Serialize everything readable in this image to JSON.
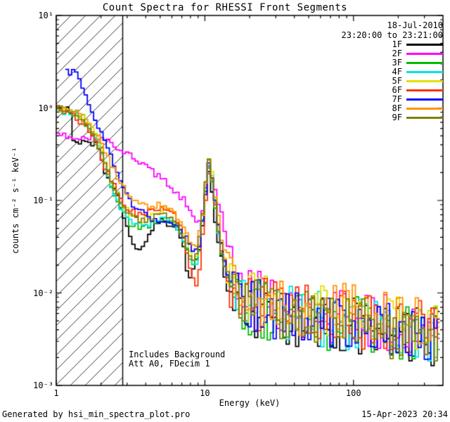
{
  "window": {
    "title": "Count Spectra for RHESSI Front Segments"
  },
  "header": {
    "date": "18-Jul-2010",
    "time_range": "23:20:00 to 23:21:00"
  },
  "axes": {
    "xlabel": "Energy (keV)",
    "ylabel": "counts cm⁻² s⁻¹ keV⁻¹",
    "x_ticks": [
      {
        "value": 1,
        "label": "1"
      },
      {
        "value": 10,
        "label": "10"
      },
      {
        "value": 100,
        "label": "100"
      }
    ],
    "y_ticks": [
      {
        "value": 0.001,
        "label": "10⁻³"
      },
      {
        "value": 0.01,
        "label": "10⁻²"
      },
      {
        "value": 0.1,
        "label": "10⁻¹"
      },
      {
        "value": 1,
        "label": "10⁰"
      },
      {
        "value": 10,
        "label": "10¹"
      }
    ]
  },
  "annotations": {
    "background": "Includes Background",
    "attenuator": "Att A0, FDecim 1"
  },
  "footer": {
    "generated_by": "Generated by hsi_min_spectra_plot.pro",
    "timestamp": "15-Apr-2023 20:34"
  },
  "chart_data": {
    "type": "line",
    "title": "Count Spectra for RHESSI Front Segments",
    "xlabel": "Energy (keV)",
    "ylabel": "counts cm⁻² s⁻¹ keV⁻¹",
    "x_scale": "log",
    "y_scale": "log",
    "xlim": [
      1,
      400
    ],
    "ylim": [
      0.001,
      10
    ],
    "grid": false,
    "legend_position": "top-right",
    "hatched_region_keV": [
      1,
      2.8
    ],
    "bin_ratio": 1.05,
    "noise": {
      "low_dex": 0.035,
      "high_dex": 0.32,
      "transition_keV": [
        12,
        20
      ]
    },
    "series": [
      {
        "name": "1F",
        "color": "#000000",
        "points": [
          [
            1.0,
            1.0
          ],
          [
            1.25,
            0.95
          ],
          [
            1.3,
            0.45
          ],
          [
            1.6,
            0.42
          ],
          [
            1.9,
            0.4
          ],
          [
            2.1,
            0.22
          ],
          [
            2.4,
            0.15
          ],
          [
            2.7,
            0.09
          ],
          [
            3.0,
            0.05
          ],
          [
            3.4,
            0.032
          ],
          [
            3.9,
            0.03
          ],
          [
            4.3,
            0.045
          ],
          [
            5.0,
            0.06
          ],
          [
            5.8,
            0.055
          ],
          [
            6.5,
            0.05
          ],
          [
            7.2,
            0.035
          ],
          [
            7.8,
            0.013
          ],
          [
            8.6,
            0.02
          ],
          [
            9.3,
            0.03
          ],
          [
            10.0,
            0.1
          ],
          [
            10.6,
            0.2
          ],
          [
            11.2,
            0.13
          ],
          [
            12.0,
            0.045
          ],
          [
            13.5,
            0.015
          ],
          [
            16,
            0.008
          ],
          [
            20,
            0.0065
          ],
          [
            30,
            0.006
          ],
          [
            50,
            0.005
          ],
          [
            80,
            0.0045
          ],
          [
            120,
            0.004
          ],
          [
            200,
            0.0036
          ],
          [
            380,
            0.003
          ]
        ]
      },
      {
        "name": "2F",
        "color": "#ff00ff",
        "points": [
          [
            1.0,
            0.5
          ],
          [
            1.5,
            0.48
          ],
          [
            2.0,
            0.46
          ],
          [
            2.3,
            0.42
          ],
          [
            2.7,
            0.36
          ],
          [
            3.2,
            0.3
          ],
          [
            3.8,
            0.25
          ],
          [
            4.5,
            0.2
          ],
          [
            5.5,
            0.155
          ],
          [
            6.5,
            0.12
          ],
          [
            7.5,
            0.095
          ],
          [
            8.3,
            0.065
          ],
          [
            9.0,
            0.055
          ],
          [
            9.8,
            0.09
          ],
          [
            10.6,
            0.24
          ],
          [
            11.3,
            0.16
          ],
          [
            12.5,
            0.09
          ],
          [
            14,
            0.035
          ],
          [
            16,
            0.015
          ],
          [
            18,
            0.01
          ],
          [
            22,
            0.0085
          ],
          [
            30,
            0.0075
          ],
          [
            50,
            0.0065
          ],
          [
            80,
            0.0058
          ],
          [
            120,
            0.0052
          ],
          [
            200,
            0.0047
          ],
          [
            380,
            0.004
          ]
        ]
      },
      {
        "name": "3F",
        "color": "#00bb00",
        "points": [
          [
            1.0,
            1.05
          ],
          [
            1.3,
            0.95
          ],
          [
            1.5,
            0.8
          ],
          [
            1.8,
            0.55
          ],
          [
            2.1,
            0.3
          ],
          [
            2.4,
            0.13
          ],
          [
            2.8,
            0.075
          ],
          [
            3.2,
            0.055
          ],
          [
            3.8,
            0.05
          ],
          [
            4.5,
            0.055
          ],
          [
            5.2,
            0.065
          ],
          [
            6.0,
            0.06
          ],
          [
            6.8,
            0.048
          ],
          [
            7.6,
            0.03
          ],
          [
            8.4,
            0.02
          ],
          [
            9.2,
            0.028
          ],
          [
            10.0,
            0.11
          ],
          [
            10.6,
            0.22
          ],
          [
            11.3,
            0.14
          ],
          [
            12.2,
            0.05
          ],
          [
            14,
            0.015
          ],
          [
            17,
            0.008
          ],
          [
            22,
            0.0065
          ],
          [
            35,
            0.0058
          ],
          [
            60,
            0.005
          ],
          [
            100,
            0.0045
          ],
          [
            180,
            0.004
          ],
          [
            380,
            0.0033
          ]
        ]
      },
      {
        "name": "4F",
        "color": "#00e5e5",
        "points": [
          [
            1.0,
            0.95
          ],
          [
            1.4,
            0.85
          ],
          [
            1.7,
            0.6
          ],
          [
            2.0,
            0.35
          ],
          [
            2.3,
            0.16
          ],
          [
            2.7,
            0.085
          ],
          [
            3.2,
            0.06
          ],
          [
            3.8,
            0.052
          ],
          [
            4.6,
            0.06
          ],
          [
            5.4,
            0.068
          ],
          [
            6.2,
            0.058
          ],
          [
            7.0,
            0.042
          ],
          [
            7.8,
            0.025
          ],
          [
            8.6,
            0.018
          ],
          [
            9.4,
            0.035
          ],
          [
            10.1,
            0.13
          ],
          [
            10.7,
            0.25
          ],
          [
            11.4,
            0.15
          ],
          [
            12.3,
            0.05
          ],
          [
            14,
            0.014
          ],
          [
            17,
            0.0085
          ],
          [
            22,
            0.007
          ],
          [
            35,
            0.006
          ],
          [
            60,
            0.0052
          ],
          [
            100,
            0.0047
          ],
          [
            180,
            0.0042
          ],
          [
            380,
            0.0035
          ]
        ]
      },
      {
        "name": "5F",
        "color": "#e0e000",
        "points": [
          [
            1.0,
            1.0
          ],
          [
            1.4,
            0.9
          ],
          [
            1.7,
            0.65
          ],
          [
            2.0,
            0.4
          ],
          [
            2.3,
            0.18
          ],
          [
            2.7,
            0.1
          ],
          [
            3.2,
            0.07
          ],
          [
            3.8,
            0.06
          ],
          [
            4.6,
            0.07
          ],
          [
            5.4,
            0.08
          ],
          [
            6.2,
            0.07
          ],
          [
            7.0,
            0.05
          ],
          [
            7.8,
            0.03
          ],
          [
            8.6,
            0.022
          ],
          [
            9.4,
            0.04
          ],
          [
            10.1,
            0.14
          ],
          [
            10.7,
            0.3
          ],
          [
            11.4,
            0.18
          ],
          [
            12.3,
            0.06
          ],
          [
            14,
            0.018
          ],
          [
            17,
            0.01
          ],
          [
            22,
            0.008
          ],
          [
            35,
            0.007
          ],
          [
            60,
            0.0062
          ],
          [
            100,
            0.0056
          ],
          [
            180,
            0.005
          ],
          [
            380,
            0.0042
          ]
        ]
      },
      {
        "name": "6F",
        "color": "#ff3000",
        "points": [
          [
            1.0,
            1.0
          ],
          [
            1.3,
            0.85
          ],
          [
            1.6,
            0.6
          ],
          [
            1.9,
            0.38
          ],
          [
            2.2,
            0.2
          ],
          [
            2.6,
            0.12
          ],
          [
            3.0,
            0.085
          ],
          [
            3.6,
            0.07
          ],
          [
            4.3,
            0.075
          ],
          [
            5.0,
            0.085
          ],
          [
            5.8,
            0.08
          ],
          [
            6.6,
            0.06
          ],
          [
            7.4,
            0.035
          ],
          [
            8.2,
            0.015
          ],
          [
            9.0,
            0.012
          ],
          [
            9.7,
            0.045
          ],
          [
            10.4,
            0.17
          ],
          [
            11.0,
            0.2
          ],
          [
            11.8,
            0.09
          ],
          [
            13,
            0.025
          ],
          [
            15,
            0.01
          ],
          [
            19,
            0.0075
          ],
          [
            28,
            0.0068
          ],
          [
            45,
            0.006
          ],
          [
            75,
            0.0053
          ],
          [
            130,
            0.0048
          ],
          [
            250,
            0.0042
          ],
          [
            380,
            0.0038
          ]
        ]
      },
      {
        "name": "7F",
        "color": "#0000ff",
        "points": [
          [
            1.15,
            2.5
          ],
          [
            1.35,
            2.4
          ],
          [
            1.5,
            1.6
          ],
          [
            1.7,
            1.0
          ],
          [
            1.95,
            0.6
          ],
          [
            2.2,
            0.38
          ],
          [
            2.5,
            0.22
          ],
          [
            2.8,
            0.14
          ],
          [
            3.2,
            0.095
          ],
          [
            3.7,
            0.075
          ],
          [
            4.3,
            0.065
          ],
          [
            5.0,
            0.06
          ],
          [
            5.8,
            0.055
          ],
          [
            6.6,
            0.05
          ],
          [
            7.4,
            0.04
          ],
          [
            8.2,
            0.03
          ],
          [
            9.0,
            0.028
          ],
          [
            9.8,
            0.07
          ],
          [
            10.5,
            0.25
          ],
          [
            11.2,
            0.17
          ],
          [
            12.2,
            0.06
          ],
          [
            14,
            0.02
          ],
          [
            17,
            0.009
          ],
          [
            22,
            0.007
          ],
          [
            35,
            0.006
          ],
          [
            60,
            0.0052
          ],
          [
            100,
            0.0047
          ],
          [
            180,
            0.0042
          ],
          [
            380,
            0.0035
          ]
        ]
      },
      {
        "name": "8F",
        "color": "#ff9500",
        "points": [
          [
            1.0,
            1.0
          ],
          [
            1.35,
            0.9
          ],
          [
            1.6,
            0.7
          ],
          [
            1.9,
            0.5
          ],
          [
            2.2,
            0.3
          ],
          [
            2.6,
            0.18
          ],
          [
            3.0,
            0.12
          ],
          [
            3.5,
            0.095
          ],
          [
            4.2,
            0.085
          ],
          [
            5.0,
            0.09
          ],
          [
            5.8,
            0.085
          ],
          [
            6.6,
            0.065
          ],
          [
            7.4,
            0.045
          ],
          [
            8.2,
            0.03
          ],
          [
            9.0,
            0.035
          ],
          [
            9.8,
            0.08
          ],
          [
            10.5,
            0.28
          ],
          [
            11.2,
            0.18
          ],
          [
            12.2,
            0.07
          ],
          [
            14,
            0.022
          ],
          [
            17,
            0.011
          ],
          [
            22,
            0.0085
          ],
          [
            35,
            0.0075
          ],
          [
            60,
            0.0066
          ],
          [
            100,
            0.006
          ],
          [
            180,
            0.0053
          ],
          [
            380,
            0.0045
          ]
        ]
      },
      {
        "name": "9F",
        "color": "#7f7f00",
        "points": [
          [
            1.0,
            0.98
          ],
          [
            1.35,
            0.88
          ],
          [
            1.6,
            0.62
          ],
          [
            1.9,
            0.4
          ],
          [
            2.2,
            0.22
          ],
          [
            2.6,
            0.11
          ],
          [
            3.0,
            0.075
          ],
          [
            3.6,
            0.06
          ],
          [
            4.3,
            0.062
          ],
          [
            5.0,
            0.07
          ],
          [
            5.8,
            0.068
          ],
          [
            6.6,
            0.052
          ],
          [
            7.4,
            0.035
          ],
          [
            8.2,
            0.022
          ],
          [
            9.0,
            0.028
          ],
          [
            9.8,
            0.09
          ],
          [
            10.6,
            0.3
          ],
          [
            11.3,
            0.16
          ],
          [
            12.3,
            0.05
          ],
          [
            14,
            0.016
          ],
          [
            17,
            0.0085
          ],
          [
            22,
            0.0068
          ],
          [
            35,
            0.006
          ],
          [
            60,
            0.0052
          ],
          [
            100,
            0.0046
          ],
          [
            180,
            0.004
          ],
          [
            300,
            0.003
          ],
          [
            380,
            0.0018
          ]
        ]
      }
    ]
  }
}
